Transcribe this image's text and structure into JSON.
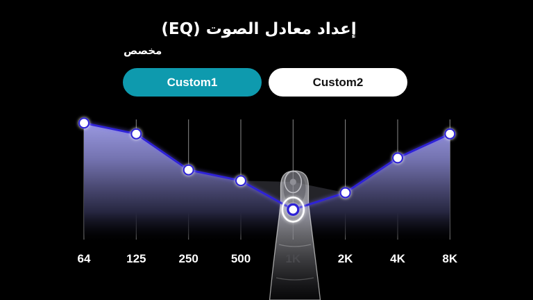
{
  "title": "إعداد معادل الصوت (EQ)",
  "section_label": "مخصص",
  "tabs": [
    {
      "label": "Custom1",
      "selected": true
    },
    {
      "label": "Custom2",
      "selected": false
    }
  ],
  "colors": {
    "background": "#000000",
    "accent_teal": "#0E9AAE",
    "tab_unselected_bg": "#FFFFFF",
    "tab_unselected_text": "#111111",
    "line_blue": "#2E23D6",
    "line_glow": "#7468FF",
    "fill_top": "#9E9DE6",
    "gridline": "rgba(255,255,255,0.55)",
    "label_white": "#FFFFFF",
    "label_on_finger": "#4A4A4E"
  },
  "chart_data": {
    "type": "line",
    "title": "",
    "xlabel": "",
    "ylabel": "",
    "categories": [
      "64",
      "125",
      "250",
      "500",
      "1K",
      "2K",
      "4K",
      "8K"
    ],
    "values": [
      97,
      88,
      58,
      49,
      25,
      39,
      68,
      88
    ],
    "ylim": [
      0,
      100
    ],
    "grid": "vertical",
    "legend": "none",
    "selected_category": "1K",
    "ghost_value_at_selected": 48,
    "annotation": "finger pointer dragging the 1K band point downward from its previous position"
  }
}
